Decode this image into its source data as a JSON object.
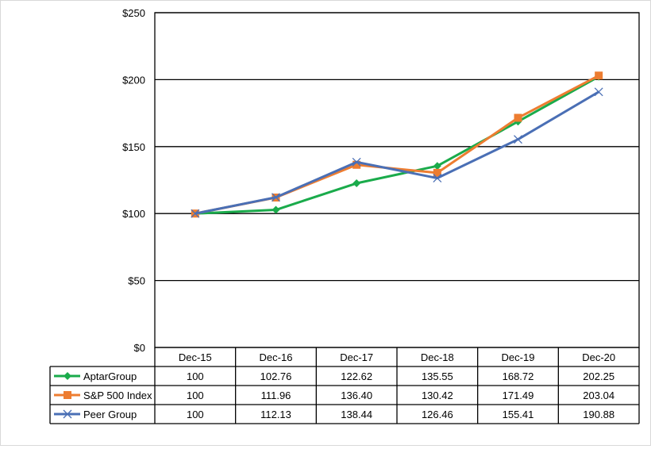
{
  "chart_data": {
    "type": "line",
    "title": "",
    "xlabel": "",
    "ylabel": "",
    "ylim": [
      0,
      250
    ],
    "ytick_step": 50,
    "ytick_labels": [
      "$0",
      "$50",
      "$100",
      "$150",
      "$200",
      "$250"
    ],
    "grid": true,
    "legend": "data-table-left",
    "categories": [
      "Dec-15",
      "Dec-16",
      "Dec-17",
      "Dec-18",
      "Dec-19",
      "Dec-20"
    ],
    "series": [
      {
        "name": "AptarGroup",
        "color": "#1aab4b",
        "marker": "diamond",
        "values": [
          100,
          102.76,
          122.62,
          135.55,
          168.72,
          202.25
        ],
        "labels": [
          "100",
          "102.76",
          "122.62",
          "135.55",
          "168.72",
          "202.25"
        ]
      },
      {
        "name": "S&P 500 Index",
        "color": "#ed7d31",
        "marker": "square",
        "values": [
          100,
          111.96,
          136.4,
          130.42,
          171.49,
          203.04
        ],
        "labels": [
          "100",
          "111.96",
          "136.40",
          "130.42",
          "171.49",
          "203.04"
        ]
      },
      {
        "name": "Peer Group",
        "color": "#4a6fb5",
        "marker": "x",
        "values": [
          100,
          112.13,
          138.44,
          126.46,
          155.41,
          190.88
        ],
        "labels": [
          "100",
          "112.13",
          "138.44",
          "126.46",
          "155.41",
          "190.88"
        ]
      }
    ]
  }
}
